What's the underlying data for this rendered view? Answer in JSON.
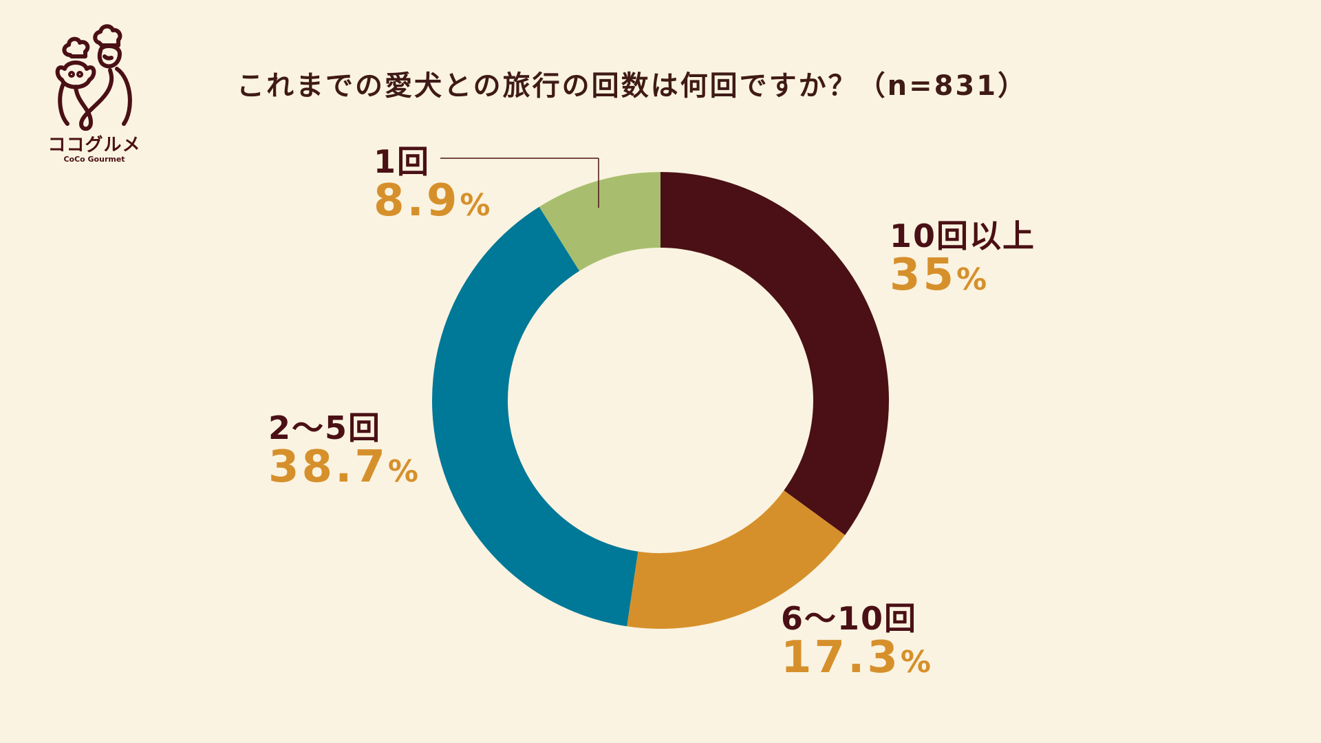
{
  "brand": {
    "name_jp": "ココグルメ",
    "name_en": "CoCo Gourmet"
  },
  "chart_data": {
    "type": "pie",
    "title": "これまでの愛犬との旅行の回数は何回ですか？（n=831）",
    "categories": [
      "10回以上",
      "6〜10回",
      "2〜5回",
      "1回"
    ],
    "values": [
      35,
      17.3,
      38.7,
      8.9
    ],
    "value_labels": [
      "35",
      "17.3",
      "38.7",
      "8.9"
    ],
    "unit": "%",
    "colors": [
      "#4A1015",
      "#D6902B",
      "#007897",
      "#A8BE6E"
    ],
    "donut": true,
    "start_angle": "12 o'clock",
    "direction": "clockwise",
    "legend": "none"
  }
}
